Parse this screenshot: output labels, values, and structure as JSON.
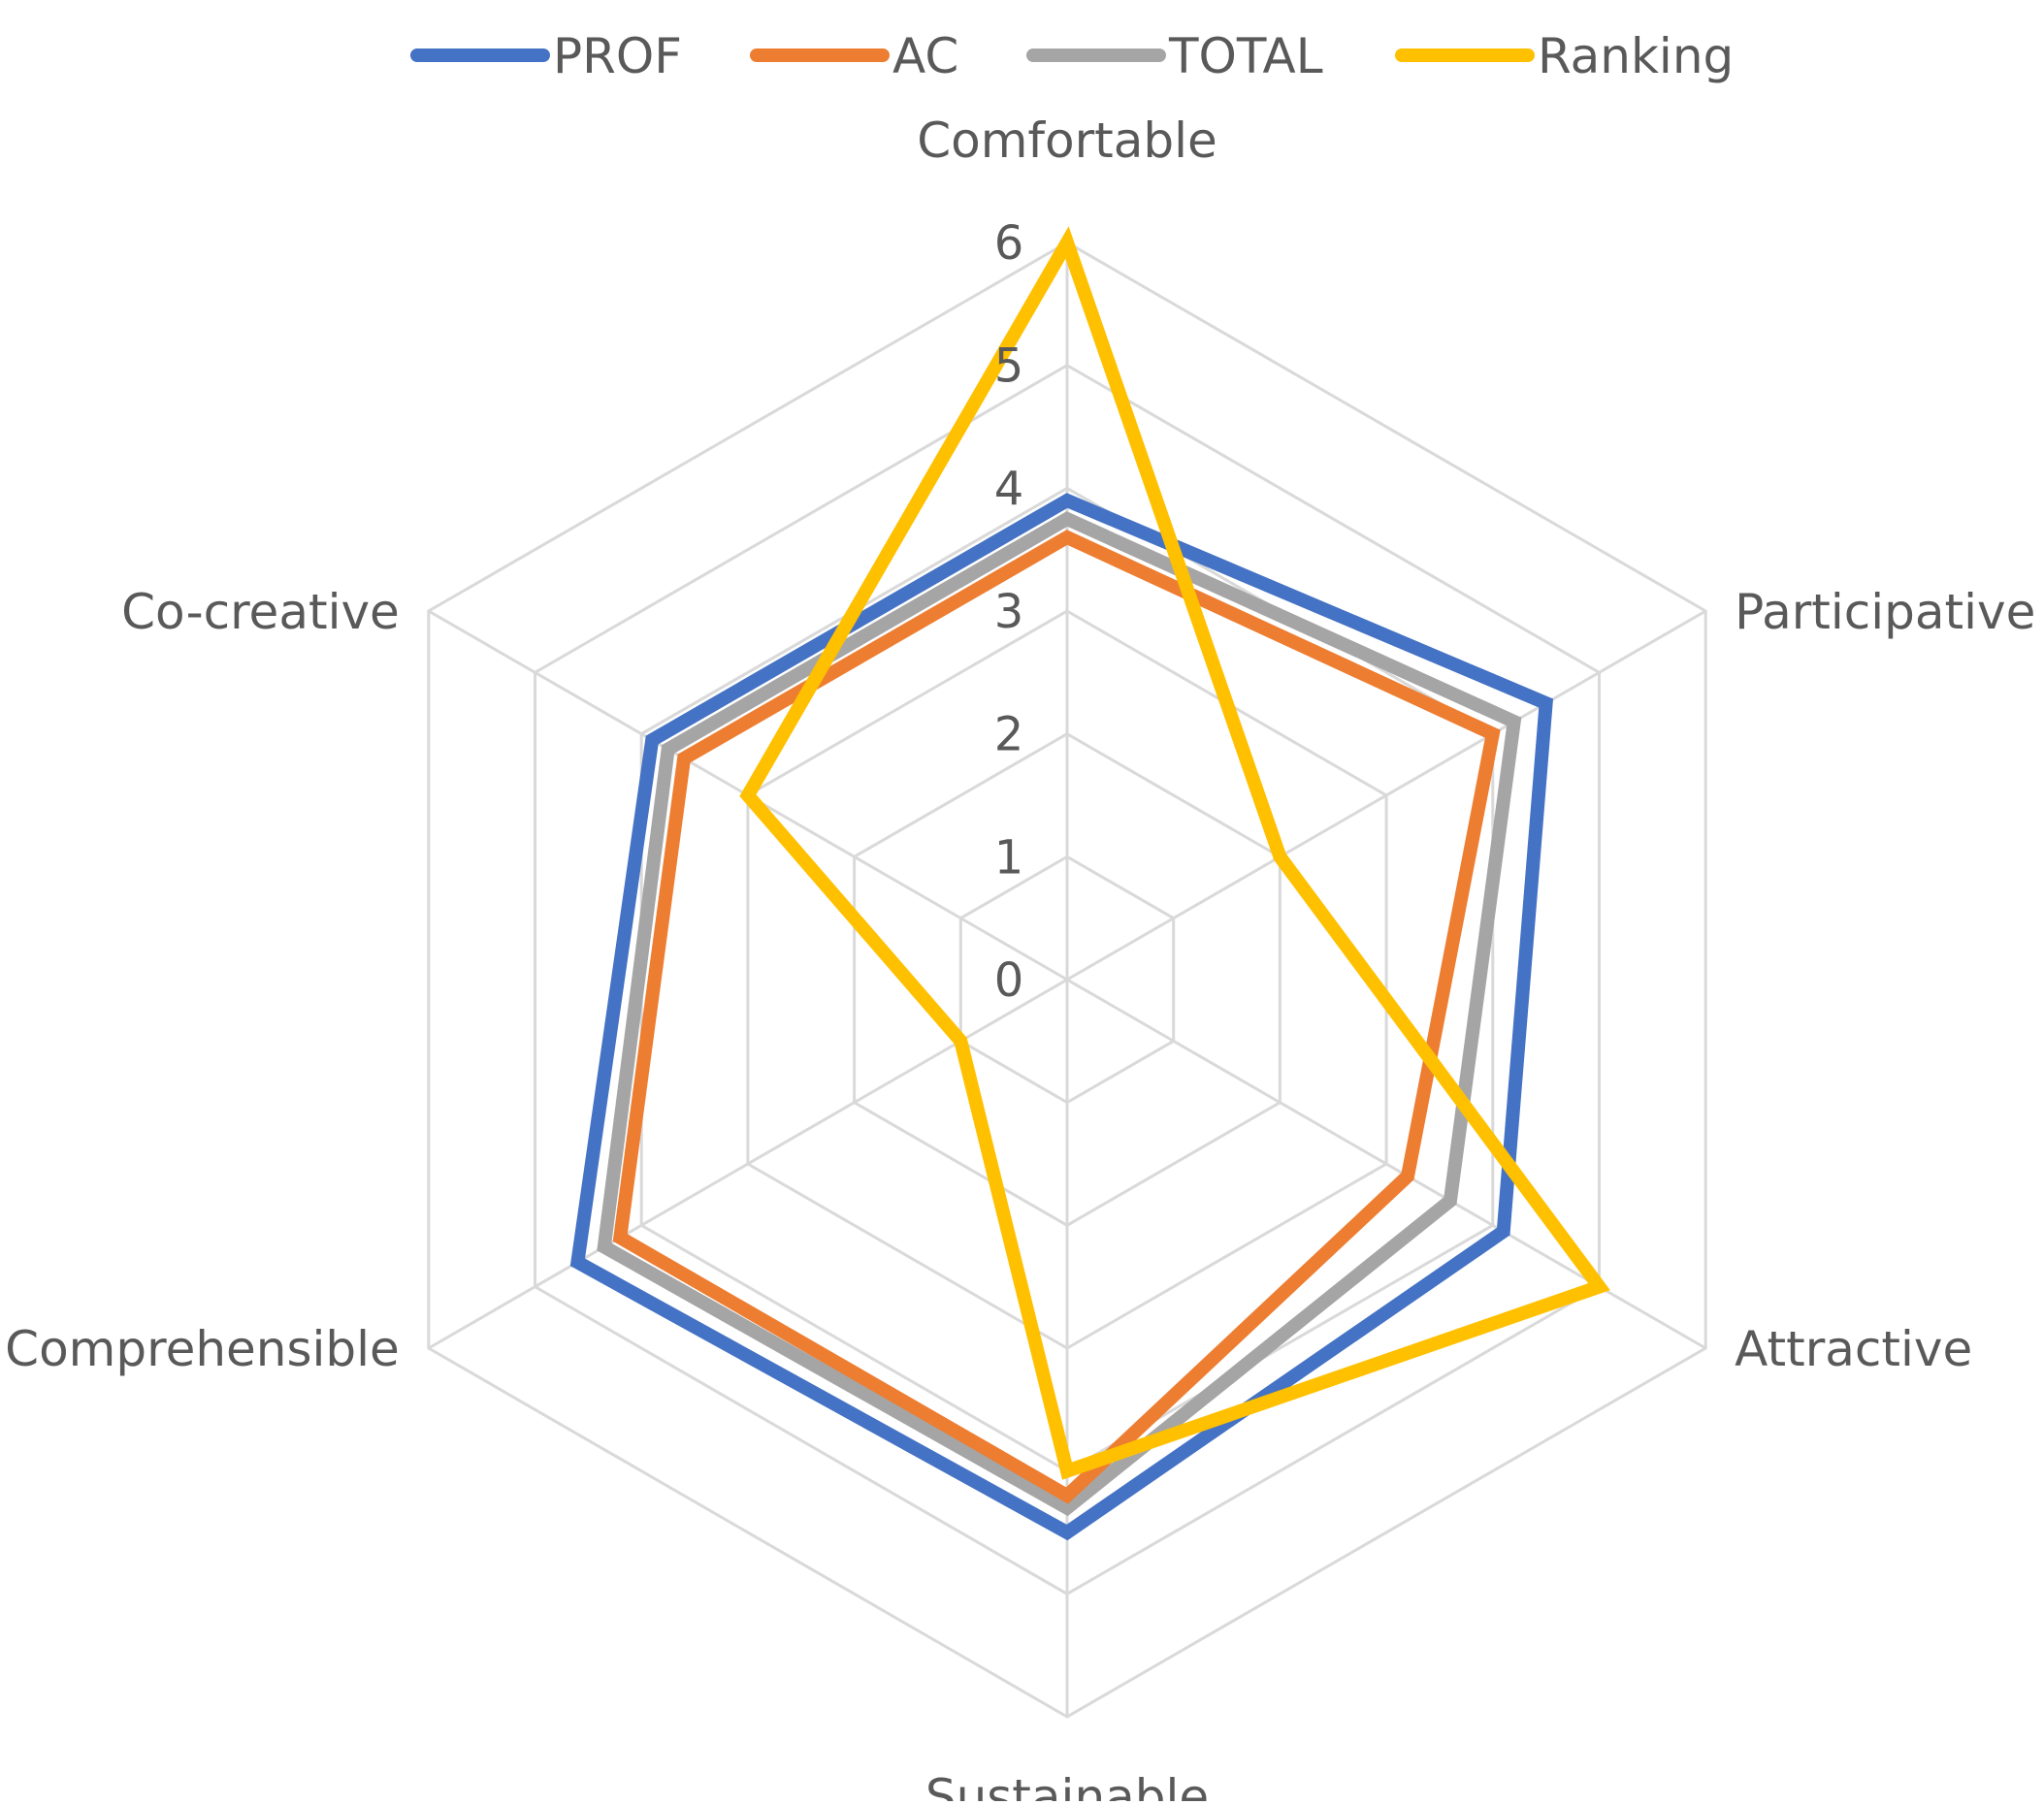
{
  "chart_data": {
    "type": "radar",
    "axes": [
      "Comfortable",
      "Participative",
      "Attractive",
      "Sustainable",
      "Comprehensible",
      "Co-creative"
    ],
    "rlim": [
      0,
      6
    ],
    "ticks": [
      "0",
      "1",
      "2",
      "3",
      "4",
      "5",
      "6"
    ],
    "legend_position": "top",
    "grid": true,
    "series": [
      {
        "name": "PROF",
        "color": "#4472C4",
        "values": [
          3.9,
          4.5,
          4.1,
          4.5,
          4.6,
          3.9
        ]
      },
      {
        "name": "TOTAL",
        "color": "#A5A5A5",
        "values": [
          3.75,
          4.2,
          3.6,
          4.3,
          4.35,
          3.75
        ]
      },
      {
        "name": "AC",
        "color": "#ED7D31",
        "values": [
          3.6,
          4.0,
          3.2,
          4.2,
          4.2,
          3.6
        ]
      },
      {
        "name": "Ranking",
        "color": "#FFC000",
        "values": [
          6,
          2,
          5,
          4,
          1,
          3
        ]
      }
    ],
    "legend_order": [
      "PROF",
      "AC",
      "TOTAL",
      "Ranking"
    ]
  }
}
